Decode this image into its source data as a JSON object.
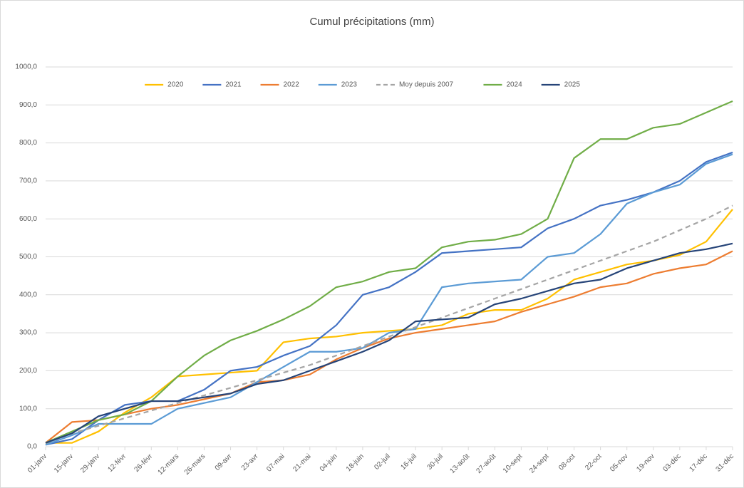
{
  "chart_data": {
    "type": "line",
    "title": "Cumul précipitations (mm)",
    "categories": [
      "01-janv",
      "15-janv",
      "29-janv",
      "12-févr",
      "26-févr",
      "12-mars",
      "26-mars",
      "09-avr",
      "23-avr",
      "07-mai",
      "21-mai",
      "04-juin",
      "18-juin",
      "02-juil",
      "16-juil",
      "30-juil",
      "13-août",
      "27-août",
      "10-sept",
      "24-sept",
      "08-oct",
      "22-oct",
      "05-nov",
      "19-nov",
      "03-déc",
      "17-déc",
      "31-déc"
    ],
    "series": [
      {
        "name": "2020",
        "color": "#ffc000",
        "values": [
          10,
          10,
          40,
          90,
          130,
          185,
          190,
          195,
          200,
          275,
          285,
          290,
          300,
          305,
          310,
          320,
          350,
          360,
          360,
          390,
          440,
          460,
          480,
          490,
          505,
          540,
          625
        ]
      },
      {
        "name": "2021",
        "color": "#4472c4",
        "values": [
          5,
          20,
          70,
          110,
          120,
          120,
          150,
          200,
          210,
          240,
          265,
          320,
          400,
          420,
          460,
          510,
          515,
          520,
          525,
          575,
          600,
          635,
          650,
          670,
          700,
          750,
          775
        ]
      },
      {
        "name": "2022",
        "color": "#ed7d31",
        "values": [
          10,
          65,
          70,
          85,
          100,
          110,
          125,
          140,
          170,
          175,
          190,
          230,
          260,
          285,
          300,
          310,
          320,
          330,
          355,
          375,
          395,
          420,
          430,
          455,
          470,
          480,
          515
        ]
      },
      {
        "name": "2023",
        "color": "#5b9bd5",
        "values": [
          5,
          30,
          60,
          60,
          60,
          100,
          115,
          130,
          170,
          210,
          250,
          250,
          260,
          300,
          310,
          420,
          430,
          435,
          440,
          500,
          510,
          560,
          640,
          670,
          690,
          745,
          770
        ]
      },
      {
        "name": "Moy depuis 2007",
        "color": "#a5a5a5",
        "dashed": true,
        "values": [
          10,
          35,
          55,
          75,
          95,
          115,
          135,
          155,
          175,
          195,
          215,
          240,
          265,
          290,
          315,
          340,
          365,
          390,
          415,
          440,
          465,
          490,
          515,
          540,
          570,
          600,
          635
        ]
      },
      {
        "name": "2024",
        "color": "#70ad47",
        "values": [
          10,
          40,
          70,
          85,
          120,
          185,
          240,
          280,
          305,
          335,
          370,
          420,
          435,
          460,
          470,
          525,
          540,
          545,
          560,
          600,
          760,
          810,
          810,
          840,
          850,
          880,
          910
        ]
      },
      {
        "name": "2025",
        "color": "#264478",
        "values": [
          10,
          35,
          80,
          100,
          120,
          120,
          130,
          140,
          165,
          175,
          200,
          225,
          250,
          280,
          330,
          335,
          340,
          375,
          390,
          410,
          430,
          440,
          470,
          490,
          510,
          520,
          535
        ]
      }
    ],
    "ylim": [
      0,
      1000
    ],
    "yticks": [
      {
        "value": 0,
        "label": "0,0"
      },
      {
        "value": 100,
        "label": "100,0"
      },
      {
        "value": 200,
        "label": "200,0"
      },
      {
        "value": 300,
        "label": "300,0"
      },
      {
        "value": 400,
        "label": "400,0"
      },
      {
        "value": 500,
        "label": "500,0"
      },
      {
        "value": 600,
        "label": "600,0"
      },
      {
        "value": 700,
        "label": "700,0"
      },
      {
        "value": 800,
        "label": "800,0"
      },
      {
        "value": 900,
        "label": "900,0"
      },
      {
        "value": 1000,
        "label": "1000,0"
      }
    ],
    "grid": true,
    "legend": "top"
  }
}
